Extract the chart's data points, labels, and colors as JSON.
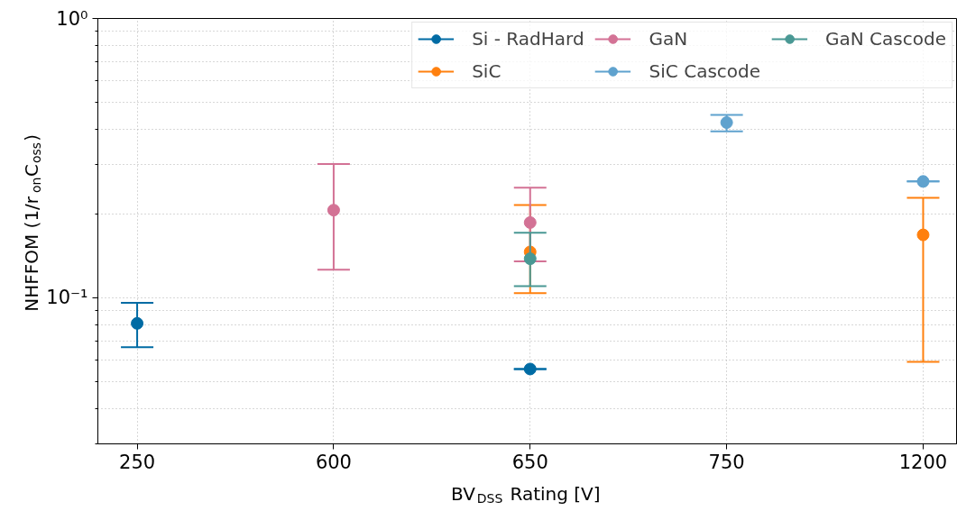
{
  "chart_data": {
    "type": "scatter",
    "xlabel": "BV$_{DSS}$ Rating [V]",
    "ylabel": "NHFFOM (1/r$_{on}$C$_{oss}$)",
    "categories": [
      "250",
      "600",
      "650",
      "750",
      "1200"
    ],
    "series": [
      {
        "name": "Si - RadHard",
        "color": "#006ba4",
        "values": [
          0.081,
          null,
          0.0556,
          null,
          null
        ],
        "errors": [
          [
            0.0665,
            0.096
          ],
          null,
          0,
          null,
          null
        ]
      },
      {
        "name": "SiC",
        "color": "#ff800e",
        "values": [
          null,
          null,
          0.146,
          null,
          0.168
        ],
        "errors": [
          null,
          null,
          [
            0.104,
            0.215
          ],
          null,
          [
            0.059,
            0.228
          ]
        ]
      },
      {
        "name": "GaN",
        "color": "#d37295",
        "values": [
          null,
          0.206,
          0.186,
          null,
          null
        ],
        "errors": [
          null,
          [
            0.126,
            0.301
          ],
          [
            0.135,
            0.248
          ],
          null,
          null
        ]
      },
      {
        "name": "SiC Cascode",
        "color": "#5fa2ce",
        "values": [
          null,
          null,
          null,
          0.424,
          0.261
        ],
        "errors": [
          null,
          null,
          null,
          [
            0.394,
            0.452
          ],
          0
        ]
      },
      {
        "name": "GaN Cascode",
        "color": "#499894",
        "values": [
          null,
          null,
          0.138,
          null,
          null
        ],
        "errors": [
          null,
          null,
          [
            0.11,
            0.171
          ],
          null,
          null
        ]
      }
    ],
    "log": "y",
    "ylim": [
      0.03,
      1
    ],
    "yticks": [
      {
        "value": 0.1,
        "label": "10⁻¹"
      },
      {
        "value": 1,
        "label": "10⁰"
      }
    ],
    "grid": true,
    "legend": "top right",
    "marker": "circle"
  }
}
